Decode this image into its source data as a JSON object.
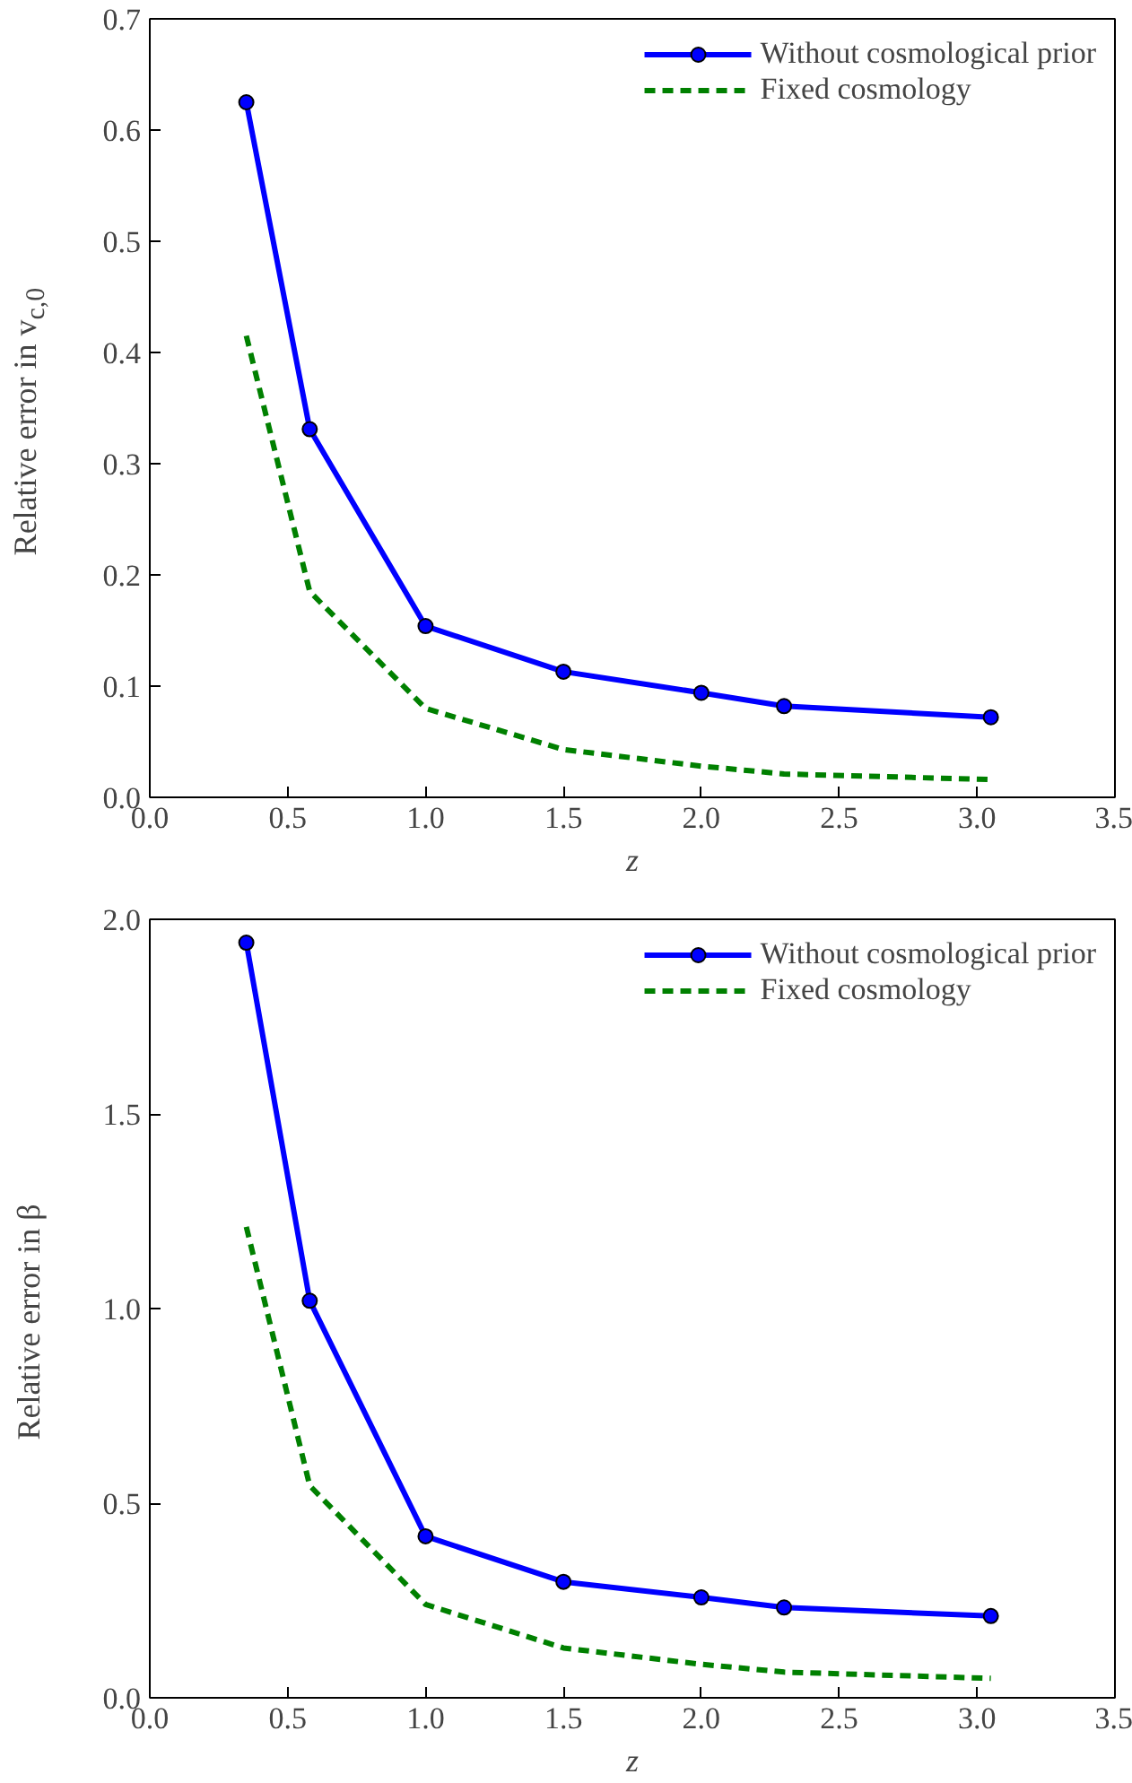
{
  "chart_data": [
    {
      "type": "line",
      "xlabel": "z",
      "ylabel": "Relative error in v$_{c,0}$",
      "x": [
        0.35,
        0.58,
        1.0,
        1.5,
        2.0,
        2.3,
        3.05
      ],
      "xlim": [
        0.0,
        3.5
      ],
      "xticks": [
        {
          "value": 0,
          "label": "0.0"
        },
        0.5,
        {
          "value": 1,
          "label": "1.0"
        },
        1.5,
        {
          "value": 2,
          "label": "2.0"
        },
        2.5,
        {
          "value": 3,
          "label": "3.0"
        },
        3.5
      ],
      "ylim": [
        0.0,
        0.7
      ],
      "yticks": [
        {
          "value": 0,
          "label": "0.0"
        },
        0.1,
        0.2,
        0.3,
        0.4,
        0.5,
        0.6,
        0.7
      ],
      "legend": "top right",
      "grid": false,
      "series": [
        {
          "name": "Without cosmological prior",
          "color": "#0000ff",
          "marker": "circle",
          "line_style": "solid",
          "values": [
            0.625,
            0.331,
            0.154,
            0.113,
            0.094,
            0.082,
            0.072
          ]
        },
        {
          "name": "Fixed cosmology",
          "color": "#008000",
          "marker": "none",
          "line_style": "dashed",
          "values": [
            0.415,
            0.185,
            0.08,
            0.043,
            0.028,
            0.021,
            0.016
          ]
        }
      ]
    },
    {
      "type": "line",
      "xlabel": "z",
      "ylabel": "Relative error in β",
      "x": [
        0.35,
        0.58,
        1.0,
        1.5,
        2.0,
        2.3,
        3.05
      ],
      "xlim": [
        0.0,
        3.5
      ],
      "xticks": [
        {
          "value": 0,
          "label": "0.0"
        },
        0.5,
        {
          "value": 1,
          "label": "1.0"
        },
        1.5,
        {
          "value": 2,
          "label": "2.0"
        },
        2.5,
        {
          "value": 3,
          "label": "3.0"
        },
        3.5
      ],
      "ylim": [
        0.0,
        2.0
      ],
      "yticks": [
        {
          "value": 0,
          "label": "0.0"
        },
        0.5,
        {
          "value": 1,
          "label": "1.0"
        },
        1.5,
        {
          "value": 2,
          "label": "2.0"
        }
      ],
      "legend": "top right",
      "grid": false,
      "series": [
        {
          "name": "Without cosmological prior",
          "color": "#0000ff",
          "marker": "circle",
          "line_style": "solid",
          "values": [
            1.94,
            1.02,
            0.415,
            0.298,
            0.258,
            0.232,
            0.21
          ]
        },
        {
          "name": "Fixed cosmology",
          "color": "#008000",
          "marker": "none",
          "line_style": "dashed",
          "values": [
            1.21,
            0.545,
            0.24,
            0.128,
            0.086,
            0.066,
            0.05
          ]
        }
      ]
    }
  ]
}
